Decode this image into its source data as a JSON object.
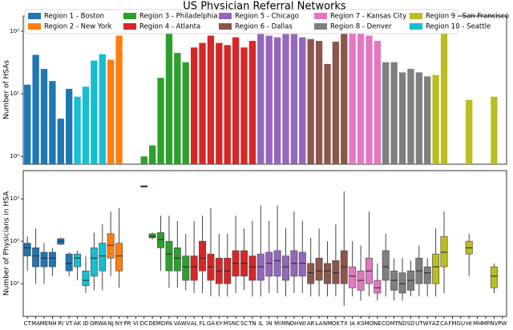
{
  "chart_data": [
    {
      "type": "bar",
      "title": "US Physician Referral Networks",
      "y_label": "Number of HSAs",
      "log_scale": true,
      "ylim": [
        0.75,
        175
      ],
      "yticks": [
        {
          "value": 1,
          "label": "10⁰"
        },
        {
          "value": 10,
          "label": "10¹"
        },
        {
          "value": 100,
          "label": "10²"
        }
      ],
      "legend": "upper left",
      "series": [
        {
          "name": "Region 1 - Boston",
          "color": "#1f77b4",
          "values": [
            14,
            42,
            25,
            16,
            4,
            12,
            null,
            null,
            null,
            null,
            null,
            null,
            null,
            null,
            null,
            null,
            null,
            null,
            null,
            null,
            null,
            null,
            null,
            null,
            null,
            null,
            null,
            null,
            null,
            null,
            null,
            null,
            null,
            null,
            null,
            null,
            null,
            null,
            null,
            null,
            null,
            null,
            null,
            null,
            null,
            null,
            null,
            null,
            null,
            null,
            null,
            null,
            null,
            null,
            null,
            null,
            null,
            null
          ]
        },
        {
          "name": "Region 2 - New York",
          "color": "#ff7f0e",
          "values": [
            null,
            null,
            null,
            null,
            null,
            null,
            null,
            null,
            null,
            null,
            35,
            85,
            null,
            null,
            null,
            null,
            null,
            null,
            null,
            null,
            null,
            null,
            null,
            null,
            null,
            null,
            null,
            null,
            null,
            null,
            null,
            null,
            null,
            null,
            null,
            null,
            null,
            null,
            null,
            null,
            null,
            null,
            null,
            null,
            null,
            null,
            null,
            null,
            null,
            null,
            null,
            null,
            null,
            null,
            null,
            null,
            null,
            null
          ]
        },
        {
          "name": "Region 3 - Philadelphia",
          "color": "#2ca02c",
          "values": [
            null,
            null,
            null,
            null,
            null,
            null,
            null,
            null,
            null,
            null,
            null,
            null,
            null,
            null,
            1,
            1.5,
            18,
            95,
            45,
            32,
            null,
            null,
            null,
            null,
            null,
            null,
            null,
            null,
            null,
            null,
            null,
            null,
            null,
            null,
            null,
            null,
            null,
            null,
            null,
            null,
            null,
            null,
            null,
            null,
            null,
            null,
            null,
            null,
            null,
            null,
            null,
            null,
            null,
            null,
            null,
            null,
            null,
            null
          ]
        },
        {
          "name": "Region 4 - Atlanta",
          "color": "#d62728",
          "values": [
            null,
            null,
            null,
            null,
            null,
            null,
            null,
            null,
            null,
            null,
            null,
            null,
            null,
            null,
            null,
            null,
            null,
            null,
            null,
            null,
            55,
            65,
            85,
            65,
            60,
            80,
            55,
            70,
            null,
            null,
            null,
            null,
            null,
            null,
            null,
            null,
            null,
            null,
            null,
            null,
            null,
            null,
            null,
            null,
            null,
            null,
            null,
            null,
            null,
            null,
            null,
            null,
            null,
            null,
            null,
            null,
            null,
            null
          ]
        },
        {
          "name": "Region 5 - Chicago",
          "color": "#9467bd",
          "values": [
            null,
            null,
            null,
            null,
            null,
            null,
            null,
            null,
            null,
            null,
            null,
            null,
            null,
            null,
            null,
            null,
            null,
            null,
            null,
            null,
            null,
            null,
            null,
            null,
            null,
            null,
            null,
            null,
            90,
            85,
            80,
            90,
            90,
            80,
            null,
            null,
            null,
            null,
            null,
            null,
            null,
            null,
            null,
            null,
            null,
            null,
            null,
            null,
            null,
            null,
            null,
            null,
            null,
            null,
            null,
            null,
            null,
            null
          ]
        },
        {
          "name": "Region 6 - Dallas",
          "color": "#8c564b",
          "values": [
            null,
            null,
            null,
            null,
            null,
            null,
            null,
            null,
            null,
            null,
            null,
            null,
            null,
            null,
            null,
            null,
            null,
            null,
            null,
            null,
            null,
            null,
            null,
            null,
            null,
            null,
            null,
            null,
            null,
            null,
            null,
            null,
            null,
            null,
            75,
            70,
            30,
            68,
            150,
            null,
            null,
            null,
            null,
            null,
            null,
            null,
            null,
            null,
            null,
            null,
            null,
            null,
            null,
            null,
            null,
            null,
            null,
            null
          ]
        },
        {
          "name": "Region 7 - Kansas City",
          "color": "#e377c2",
          "values": [
            null,
            null,
            null,
            null,
            null,
            null,
            null,
            null,
            null,
            null,
            null,
            null,
            null,
            null,
            null,
            null,
            null,
            null,
            null,
            null,
            null,
            null,
            null,
            null,
            null,
            null,
            null,
            null,
            null,
            null,
            null,
            null,
            null,
            null,
            null,
            null,
            null,
            null,
            null,
            95,
            110,
            85,
            70,
            null,
            null,
            null,
            null,
            null,
            null,
            null,
            null,
            null,
            null,
            null,
            null,
            null,
            null,
            null
          ]
        },
        {
          "name": "Region 8 - Denver",
          "color": "#7f7f7f",
          "values": [
            null,
            null,
            null,
            null,
            null,
            null,
            null,
            null,
            null,
            null,
            null,
            null,
            null,
            null,
            null,
            null,
            null,
            null,
            null,
            null,
            null,
            null,
            null,
            null,
            null,
            null,
            null,
            null,
            null,
            null,
            null,
            null,
            null,
            null,
            null,
            null,
            null,
            null,
            null,
            null,
            null,
            null,
            null,
            32,
            32,
            22,
            25,
            22,
            19,
            null,
            null,
            null,
            null,
            null,
            null,
            null,
            null,
            null
          ]
        },
        {
          "name": "Region 9 - San Francisco",
          "color": "#bcbd22",
          "values": [
            null,
            null,
            null,
            null,
            null,
            null,
            null,
            null,
            null,
            null,
            null,
            null,
            null,
            null,
            null,
            null,
            null,
            null,
            null,
            null,
            null,
            null,
            null,
            null,
            null,
            null,
            null,
            null,
            null,
            null,
            null,
            null,
            null,
            null,
            null,
            null,
            null,
            null,
            null,
            null,
            null,
            null,
            null,
            null,
            null,
            null,
            null,
            null,
            null,
            20,
            110,
            null,
            null,
            8,
            null,
            null,
            9,
            null
          ]
        },
        {
          "name": "Region 10 - Seattle",
          "color": "#17becf",
          "values": [
            null,
            null,
            null,
            null,
            null,
            null,
            9,
            13,
            34,
            43,
            null,
            null,
            null,
            null,
            null,
            null,
            null,
            null,
            null,
            null,
            null,
            null,
            null,
            null,
            null,
            null,
            null,
            null,
            null,
            null,
            null,
            null,
            null,
            null,
            null,
            null,
            null,
            null,
            null,
            null,
            null,
            null,
            null,
            null,
            null,
            null,
            null,
            null,
            null,
            null,
            null,
            null,
            null,
            null,
            null,
            null,
            null,
            null
          ]
        }
      ]
    },
    {
      "type": "box",
      "y_label": "Number of Physicians in HSA",
      "log_scale": true,
      "ylim": [
        1.7,
        4600
      ],
      "yticks": [
        {
          "value": 10,
          "label": "10¹"
        },
        {
          "value": 100,
          "label": "10²"
        },
        {
          "value": 1000,
          "label": "10³"
        }
      ],
      "categories": [
        "CT",
        "MA",
        "ME",
        "NH",
        "RI",
        "VT",
        "AK",
        "ID",
        "OR",
        "WA",
        "NJ",
        "NY",
        "PR",
        "VI",
        "DC",
        "DE",
        "MD",
        "PA",
        "VA",
        "WV",
        "AL",
        "FL",
        "GA",
        "KY",
        "MS",
        "NC",
        "SC",
        "TN",
        "IL",
        "IN",
        "MI",
        "MN",
        "OH",
        "WI",
        "AR",
        "LA",
        "NM",
        "OK",
        "TX",
        "IA",
        "KS",
        "MO",
        "NE",
        "CO",
        "MT",
        "ND",
        "SD",
        "UT",
        "WY",
        "AZ",
        "CA",
        "FM",
        "GU",
        "HI",
        "MH",
        "MP",
        "NV",
        "PW"
      ],
      "boxes": [
        {
          "low": 20,
          "q1": 45,
          "median": 70,
          "q3": 90,
          "high": 130
        },
        {
          "low": 10,
          "q1": 25,
          "median": 45,
          "q3": 70,
          "high": 200
        },
        {
          "low": 10,
          "q1": 25,
          "median": 40,
          "q3": 55,
          "high": 90
        },
        {
          "low": 15,
          "q1": 25,
          "median": 40,
          "q3": 55,
          "high": 70
        },
        {
          "low": 80,
          "q1": 85,
          "median": 100,
          "q3": 115,
          "high": 120
        },
        {
          "low": 15,
          "q1": 20,
          "median": 30,
          "q3": 50,
          "high": 55
        },
        {
          "low": 12,
          "q1": 25,
          "median": 40,
          "q3": 50,
          "high": 60
        },
        {
          "low": 6,
          "q1": 9,
          "median": 12,
          "q3": 20,
          "high": 45
        },
        {
          "low": 7,
          "q1": 15,
          "median": 40,
          "q3": 70,
          "high": 160
        },
        {
          "low": 7,
          "q1": 20,
          "median": 45,
          "q3": 90,
          "high": 250
        },
        {
          "low": 15,
          "q1": 40,
          "median": 80,
          "q3": 150,
          "high": 500
        },
        {
          "low": 8,
          "q1": 20,
          "median": 45,
          "q3": 90,
          "high": 600
        },
        null,
        null,
        {
          "low": 2000,
          "q1": 2000,
          "median": 2000,
          "q3": 2000,
          "high": 2000
        },
        {
          "low": 110,
          "q1": 120,
          "median": 130,
          "q3": 150,
          "high": 160
        },
        {
          "low": 20,
          "q1": 70,
          "median": 110,
          "q3": 160,
          "high": 400
        },
        {
          "low": 8,
          "q1": 20,
          "median": 50,
          "q3": 100,
          "high": 400
        },
        {
          "low": 8,
          "q1": 20,
          "median": 40,
          "q3": 70,
          "high": 300
        },
        {
          "low": 7,
          "q1": 12,
          "median": 25,
          "q3": 45,
          "high": 150
        },
        {
          "low": 6,
          "q1": 12,
          "median": 25,
          "q3": 45,
          "high": 300
        },
        {
          "low": 6,
          "q1": 20,
          "median": 40,
          "q3": 100,
          "high": 400
        },
        {
          "low": 5,
          "q1": 12,
          "median": 25,
          "q3": 50,
          "high": 600
        },
        {
          "low": 5,
          "q1": 10,
          "median": 20,
          "q3": 40,
          "high": 150
        },
        {
          "low": 5,
          "q1": 10,
          "median": 20,
          "q3": 40,
          "high": 150
        },
        {
          "low": 6,
          "q1": 15,
          "median": 30,
          "q3": 60,
          "high": 400
        },
        {
          "low": 7,
          "q1": 15,
          "median": 30,
          "q3": 60,
          "high": 200
        },
        {
          "low": 5,
          "q1": 12,
          "median": 25,
          "q3": 45,
          "high": 300
        },
        {
          "low": 5,
          "q1": 12,
          "median": 25,
          "q3": 50,
          "high": 700
        },
        {
          "low": 6,
          "q1": 15,
          "median": 30,
          "q3": 55,
          "high": 300
        },
        {
          "low": 6,
          "q1": 15,
          "median": 35,
          "q3": 60,
          "high": 700
        },
        {
          "low": 5,
          "q1": 12,
          "median": 25,
          "q3": 45,
          "high": 200
        },
        {
          "low": 6,
          "q1": 15,
          "median": 30,
          "q3": 60,
          "high": 500
        },
        {
          "low": 6,
          "q1": 15,
          "median": 30,
          "q3": 55,
          "high": 300
        },
        {
          "low": 5,
          "q1": 10,
          "median": 18,
          "q3": 30,
          "high": 120
        },
        {
          "low": 5,
          "q1": 12,
          "median": 20,
          "q3": 40,
          "high": 200
        },
        {
          "low": 5,
          "q1": 10,
          "median": 20,
          "q3": 30,
          "high": 100
        },
        {
          "low": 5,
          "q1": 10,
          "median": 18,
          "q3": 35,
          "high": 250
        },
        {
          "low": 3,
          "q1": 10,
          "median": 25,
          "q3": 60,
          "high": 1500
        },
        {
          "low": 5,
          "q1": 8,
          "median": 15,
          "q3": 25,
          "high": 100
        },
        {
          "low": 4,
          "q1": 7,
          "median": 12,
          "q3": 20,
          "high": 80
        },
        {
          "low": 5,
          "q1": 10,
          "median": 20,
          "q3": 40,
          "high": 500
        },
        {
          "low": 4,
          "q1": 6,
          "median": 8,
          "q3": 12,
          "high": 30
        },
        {
          "low": 5,
          "q1": 12,
          "median": 25,
          "q3": 60,
          "high": 150
        },
        {
          "low": 4,
          "q1": 7,
          "median": 12,
          "q3": 20,
          "high": 40
        },
        {
          "low": 4,
          "q1": 6,
          "median": 10,
          "q3": 18,
          "high": 40
        },
        {
          "low": 5,
          "q1": 7,
          "median": 12,
          "q3": 20,
          "high": 35
        },
        {
          "low": 5,
          "q1": 10,
          "median": 20,
          "q3": 40,
          "high": 80
        },
        {
          "low": 5,
          "q1": 10,
          "median": 18,
          "q3": 25,
          "high": 40
        },
        {
          "low": 5,
          "q1": 10,
          "median": 25,
          "q3": 50,
          "high": 200
        },
        {
          "low": 6,
          "q1": 25,
          "median": 55,
          "q3": 130,
          "high": 500
        },
        null,
        null,
        {
          "low": 15,
          "q1": 50,
          "median": 70,
          "q3": 100,
          "high": 150
        },
        null,
        null,
        {
          "low": 6,
          "q1": 8,
          "median": 15,
          "q3": 25,
          "high": 30
        },
        null
      ]
    }
  ]
}
